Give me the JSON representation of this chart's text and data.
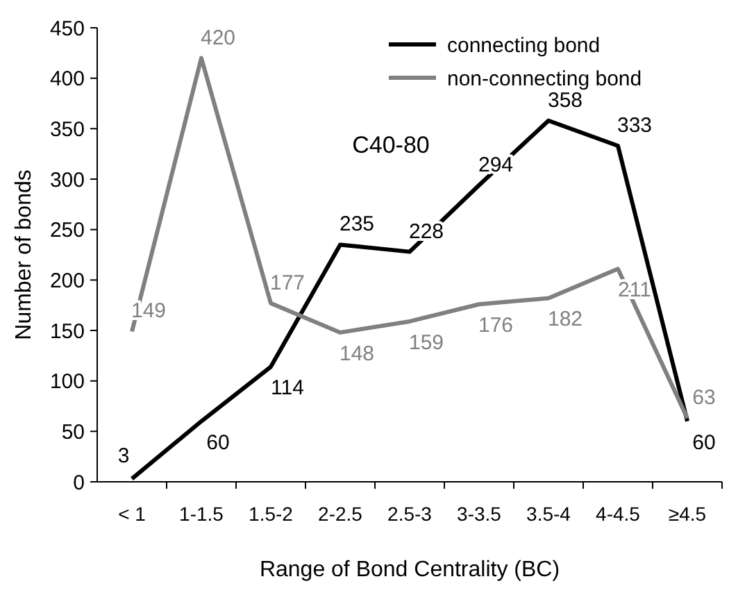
{
  "chart_data": {
    "type": "line",
    "xlabel": "Range of Bond Centrality (BC)",
    "ylabel": "Number of bonds",
    "categories": [
      "< 1",
      "1-1.5",
      "1.5-2",
      "2-2.5",
      "2.5-3",
      "3-3.5",
      "3.5-4",
      "4-4.5",
      "≥4.5"
    ],
    "series": [
      {
        "name": "connecting bond",
        "color": "#000000",
        "values": [
          3,
          60,
          114,
          235,
          228,
          294,
          358,
          333,
          60
        ]
      },
      {
        "name": "non-connecting bond",
        "color": "#808080",
        "values": [
          149,
          420,
          177,
          148,
          159,
          176,
          182,
          211,
          63
        ]
      }
    ],
    "ylim": [
      0,
      450
    ],
    "yticks": [
      0,
      50,
      100,
      150,
      200,
      250,
      300,
      350,
      400,
      450
    ],
    "annotations": [
      "C40-80"
    ],
    "data_labels": true,
    "legend": "top right",
    "grid": false,
    "marker": "none",
    "line_style": "solid"
  }
}
